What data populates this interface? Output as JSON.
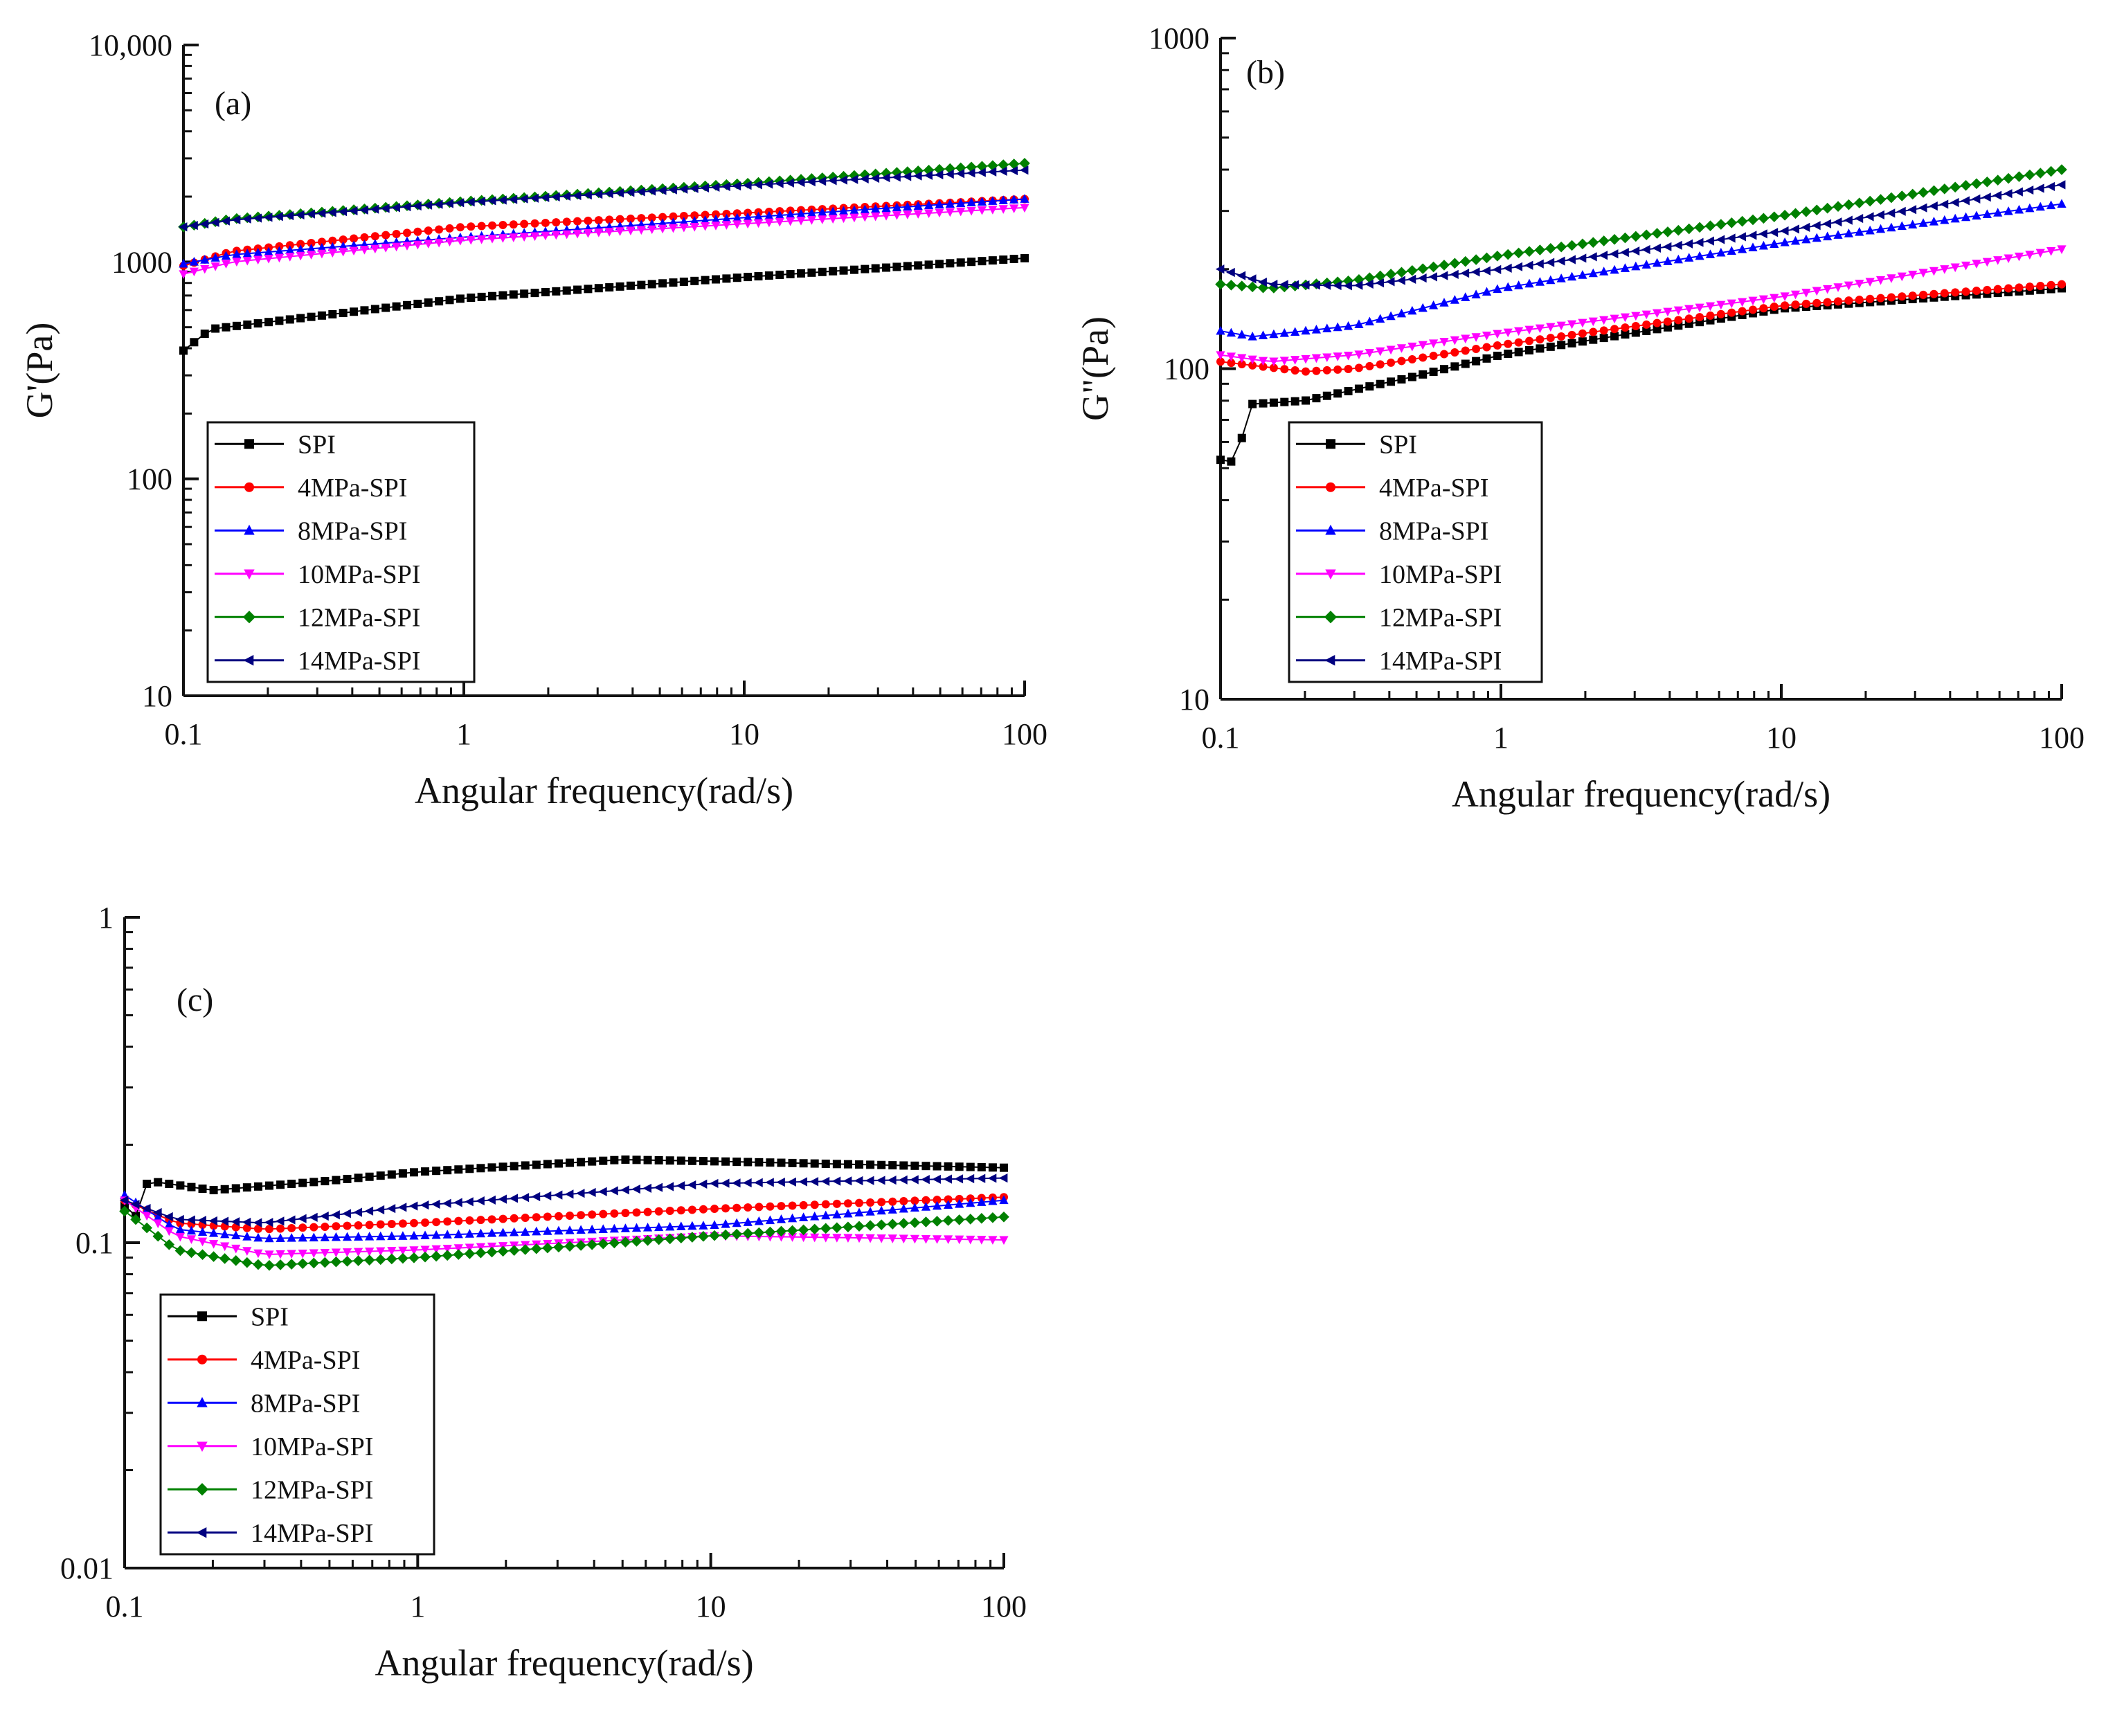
{
  "figure": {
    "series_style": [
      {
        "name": "SPI",
        "color": "#000000",
        "marker": "square"
      },
      {
        "name": "4MPa-SPI",
        "color": "#ff0000",
        "marker": "circle"
      },
      {
        "name": "8MPa-SPI",
        "color": "#0000ff",
        "marker": "triangle-up"
      },
      {
        "name": "10MPa-SPI",
        "color": "#ff00ff",
        "marker": "triangle-down"
      },
      {
        "name": "12MPa-SPI",
        "color": "#008000",
        "marker": "diamond"
      },
      {
        "name": "14MPa-SPI",
        "color": "#000080",
        "marker": "triangle-left"
      }
    ]
  },
  "chart_data": [
    {
      "panel": "(a)",
      "type": "line",
      "xscale": "log",
      "yscale": "log",
      "xlim": [
        0.1,
        100
      ],
      "ylim": [
        10,
        10000
      ],
      "xticks": [
        "0.1",
        "1",
        "10",
        "100"
      ],
      "yticks": [
        "10",
        "100",
        "1000",
        "10,000"
      ],
      "xlabel": "Angular frequency(rad/s)",
      "ylabel": "G'(Pa)",
      "legend": "bottom-left",
      "series": [
        {
          "name": "SPI",
          "anchors": [
            [
              0.1,
              390
            ],
            [
              0.11,
              430
            ],
            [
              0.125,
              490
            ],
            [
              1,
              680
            ],
            [
              10,
              850
            ],
            [
              100,
              1040
            ]
          ]
        },
        {
          "name": "4MPa-SPI",
          "anchors": [
            [
              0.1,
              960
            ],
            [
              0.15,
              1120
            ],
            [
              1,
              1450
            ],
            [
              10,
              1680
            ],
            [
              100,
              1950
            ]
          ]
        },
        {
          "name": "8MPa-SPI",
          "anchors": [
            [
              0.1,
              980
            ],
            [
              0.15,
              1080
            ],
            [
              1,
              1300
            ],
            [
              10,
              1600
            ],
            [
              100,
              1950
            ]
          ]
        },
        {
          "name": "10MPa-SPI",
          "anchors": [
            [
              0.1,
              880
            ],
            [
              0.15,
              1000
            ],
            [
              1,
              1260
            ],
            [
              10,
              1500
            ],
            [
              100,
              1780
            ]
          ]
        },
        {
          "name": "12MPa-SPI",
          "anchors": [
            [
              0.1,
              1450
            ],
            [
              0.15,
              1580
            ],
            [
              1,
              1900
            ],
            [
              10,
              2300
            ],
            [
              100,
              2850
            ]
          ]
        },
        {
          "name": "14MPa-SPI",
          "anchors": [
            [
              0.1,
              1450
            ],
            [
              0.15,
              1560
            ],
            [
              1,
              1880
            ],
            [
              10,
              2250
            ],
            [
              100,
              2650
            ]
          ]
        }
      ]
    },
    {
      "panel": "(b)",
      "type": "line",
      "xscale": "log",
      "yscale": "log",
      "xlim": [
        0.1,
        100
      ],
      "ylim": [
        10,
        1000
      ],
      "xticks": [
        "0.1",
        "1",
        "10",
        "100"
      ],
      "yticks": [
        "10",
        "100",
        "1000"
      ],
      "xlabel": "Angular frequency(rad/s)",
      "ylabel": "G\"(Pa)",
      "legend": "bottom-left",
      "series": [
        {
          "name": "SPI",
          "anchors": [
            [
              0.1,
              53
            ],
            [
              0.115,
              52
            ],
            [
              0.125,
              78
            ],
            [
              0.2,
              80
            ],
            [
              0.5,
              95
            ],
            [
              1,
              110
            ],
            [
              10,
              152
            ],
            [
              100,
              175
            ]
          ]
        },
        {
          "name": "4MPa-SPI",
          "anchors": [
            [
              0.1,
              105
            ],
            [
              0.2,
              98
            ],
            [
              0.3,
              100
            ],
            [
              1,
              118
            ],
            [
              10,
              155
            ],
            [
              100,
              180
            ]
          ]
        },
        {
          "name": "8MPa-SPI",
          "anchors": [
            [
              0.1,
              130
            ],
            [
              0.13,
              125
            ],
            [
              0.3,
              135
            ],
            [
              1,
              175
            ],
            [
              10,
              240
            ],
            [
              100,
              315
            ]
          ]
        },
        {
          "name": "10MPa-SPI",
          "anchors": [
            [
              0.1,
              110
            ],
            [
              0.15,
              105
            ],
            [
              0.3,
              110
            ],
            [
              1,
              128
            ],
            [
              10,
              165
            ],
            [
              100,
              230
            ]
          ]
        },
        {
          "name": "12MPa-SPI",
          "anchors": [
            [
              0.1,
              180
            ],
            [
              0.15,
              175
            ],
            [
              0.3,
              185
            ],
            [
              1,
              220
            ],
            [
              10,
              290
            ],
            [
              100,
              400
            ]
          ]
        },
        {
          "name": "14MPa-SPI",
          "anchors": [
            [
              0.1,
              200
            ],
            [
              0.15,
              180
            ],
            [
              0.3,
              178
            ],
            [
              1,
              200
            ],
            [
              10,
              260
            ],
            [
              100,
              360
            ]
          ]
        }
      ]
    },
    {
      "panel": "(c)",
      "type": "line",
      "xscale": "log",
      "yscale": "log",
      "xlim": [
        0.1,
        100
      ],
      "ylim": [
        0.01,
        1
      ],
      "xticks": [
        "0.1",
        "1",
        "10",
        "100"
      ],
      "yticks": [
        "0.01",
        "0.1",
        "1"
      ],
      "xlabel": "Angular frequency(rad/s)",
      "ylabel": "",
      "legend": "bottom-left",
      "series": [
        {
          "name": "SPI",
          "anchors": [
            [
              0.1,
              0.13
            ],
            [
              0.11,
              0.12
            ],
            [
              0.12,
              0.155
            ],
            [
              0.2,
              0.145
            ],
            [
              0.5,
              0.155
            ],
            [
              1,
              0.165
            ],
            [
              5,
              0.18
            ],
            [
              10,
              0.178
            ],
            [
              100,
              0.17
            ]
          ]
        },
        {
          "name": "4MPa-SPI",
          "anchors": [
            [
              0.1,
              0.135
            ],
            [
              0.15,
              0.115
            ],
            [
              0.3,
              0.11
            ],
            [
              1,
              0.115
            ],
            [
              10,
              0.127
            ],
            [
              100,
              0.138
            ]
          ]
        },
        {
          "name": "8MPa-SPI",
          "anchors": [
            [
              0.1,
              0.14
            ],
            [
              0.15,
              0.11
            ],
            [
              0.3,
              0.103
            ],
            [
              1,
              0.105
            ],
            [
              10,
              0.113
            ],
            [
              100,
              0.135
            ]
          ]
        },
        {
          "name": "10MPa-SPI",
          "anchors": [
            [
              0.1,
              0.135
            ],
            [
              0.15,
              0.105
            ],
            [
              0.3,
              0.092
            ],
            [
              1,
              0.095
            ],
            [
              10,
              0.105
            ],
            [
              100,
              0.102
            ]
          ]
        },
        {
          "name": "12MPa-SPI",
          "anchors": [
            [
              0.1,
              0.125
            ],
            [
              0.15,
              0.095
            ],
            [
              0.3,
              0.085
            ],
            [
              1,
              0.09
            ],
            [
              10,
              0.105
            ],
            [
              100,
              0.12
            ]
          ]
        },
        {
          "name": "14MPa-SPI",
          "anchors": [
            [
              0.1,
              0.135
            ],
            [
              0.15,
              0.118
            ],
            [
              0.3,
              0.115
            ],
            [
              1,
              0.13
            ],
            [
              10,
              0.152
            ],
            [
              100,
              0.158
            ]
          ]
        }
      ]
    }
  ]
}
